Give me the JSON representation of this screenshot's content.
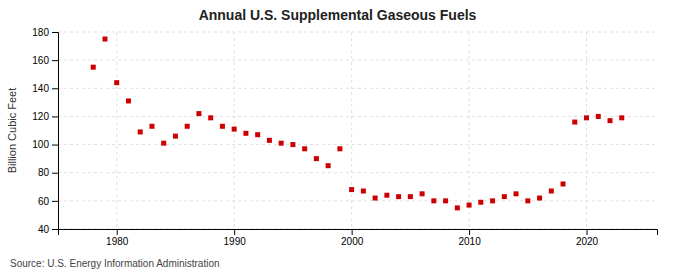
{
  "chart_data": {
    "type": "scatter",
    "title": "Annual U.S. Supplemental Gaseous Fuels",
    "ylabel": "Billion Cubic Feet",
    "source": "Source: U.S. Energy Information Administration",
    "color": "#cc0000",
    "marker": "square",
    "grid": true,
    "x": [
      1978,
      1979,
      1980,
      1981,
      1982,
      1983,
      1984,
      1985,
      1986,
      1987,
      1988,
      1989,
      1990,
      1991,
      1992,
      1993,
      1994,
      1995,
      1996,
      1997,
      1998,
      1999,
      2000,
      2001,
      2002,
      2003,
      2004,
      2005,
      2006,
      2007,
      2008,
      2009,
      2010,
      2011,
      2012,
      2013,
      2014,
      2015,
      2016,
      2017,
      2018,
      2019,
      2020,
      2021,
      2022,
      2023
    ],
    "values": [
      155,
      175,
      144,
      131,
      109,
      113,
      101,
      106,
      113,
      122,
      119,
      113,
      111,
      108,
      107,
      103,
      101,
      100,
      97,
      90,
      85,
      97,
      68,
      67,
      62,
      64,
      63,
      63,
      65,
      60,
      60,
      55,
      57,
      59,
      60,
      63,
      65,
      60,
      62,
      67,
      72,
      116,
      119,
      120,
      117,
      119
    ],
    "xlim": [
      1975,
      2026
    ],
    "ylim": [
      40,
      180
    ],
    "yticks": [
      40,
      60,
      80,
      100,
      120,
      140,
      160,
      180
    ],
    "xticks": [
      1980,
      1990,
      2000,
      2010,
      2020
    ]
  }
}
